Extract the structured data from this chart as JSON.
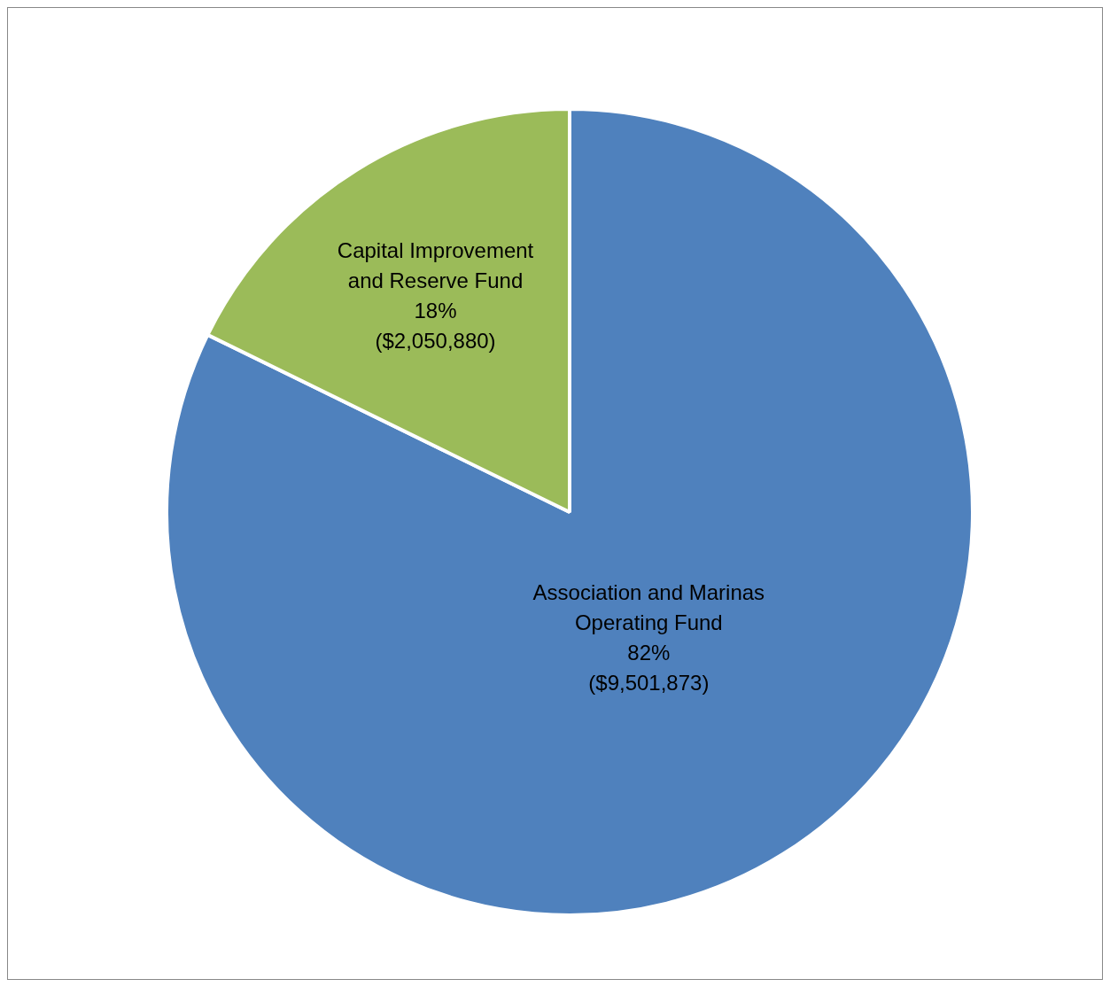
{
  "chart_data": {
    "type": "pie",
    "categories": [
      "Association and Marinas\nOperating Fund",
      "Capital Improvement\nand Reserve Fund"
    ],
    "values": [
      9501873,
      2050880
    ],
    "value_labels": [
      "82%\n($9,501,873)",
      "18%\n($2,050,880)"
    ],
    "colors": [
      "#4f81bd",
      "#9bbb59"
    ],
    "legend": false
  }
}
